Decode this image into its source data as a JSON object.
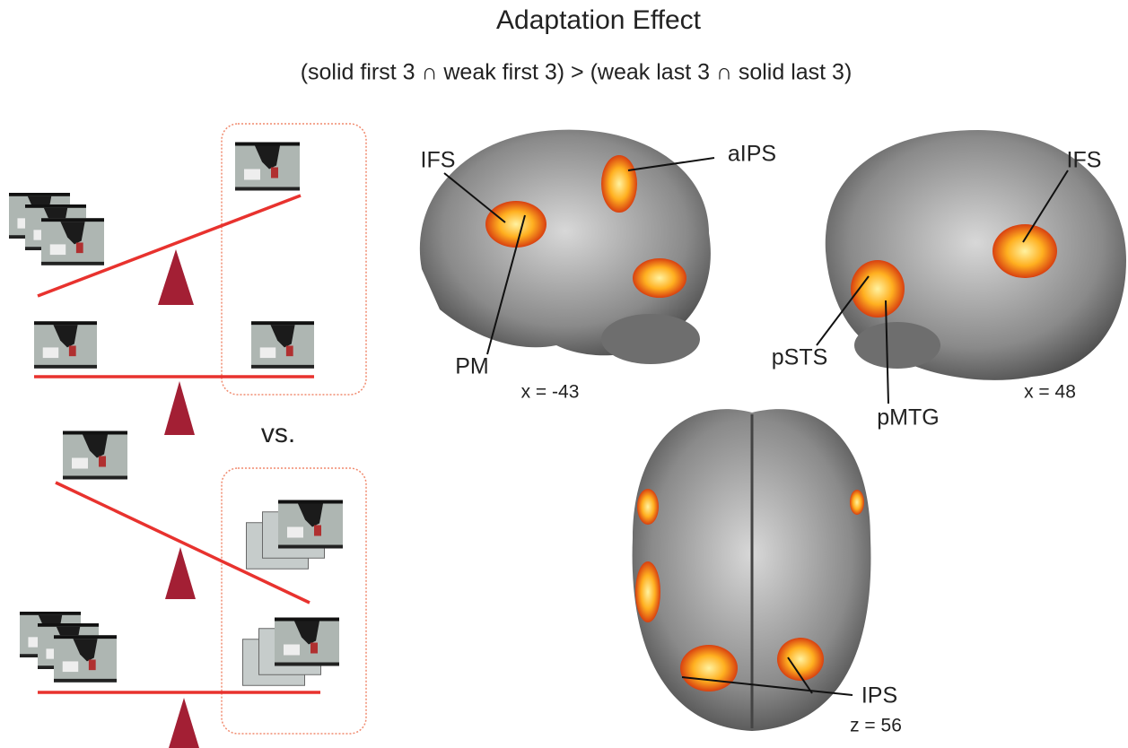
{
  "header": {
    "title": "Adaptation Effect",
    "subtitle": "(solid first 3 ∩ weak first 3) > (weak last 3 ∩ solid last 3)"
  },
  "comparison_label": "vs.",
  "brains": [
    {
      "coordinate": "x = -43",
      "labels": [
        "IFS",
        "aIPS",
        "PM"
      ]
    },
    {
      "coordinate": "x = 48",
      "labels": [
        "IFS",
        "pSTS",
        "pMTG"
      ]
    },
    {
      "coordinate": "z = 56",
      "labels": [
        "IPS"
      ]
    }
  ]
}
